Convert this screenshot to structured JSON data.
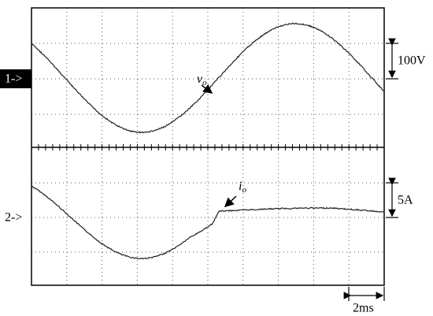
{
  "channels": [
    {
      "marker": "1->",
      "label": "v",
      "subscript": "o",
      "scale": "100V"
    },
    {
      "marker": "2->",
      "label": "i",
      "subscript": "o",
      "scale": "5A"
    }
  ],
  "timebase": "2ms"
}
